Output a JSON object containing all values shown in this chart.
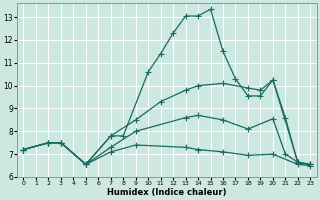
{
  "xlabel": "Humidex (Indice chaleur)",
  "xlim": [
    -0.5,
    23.5
  ],
  "ylim": [
    6,
    13.6
  ],
  "yticks": [
    6,
    7,
    8,
    9,
    10,
    11,
    12,
    13
  ],
  "xticks": [
    0,
    1,
    2,
    3,
    4,
    5,
    6,
    7,
    8,
    9,
    10,
    11,
    12,
    13,
    14,
    15,
    16,
    17,
    18,
    19,
    20,
    21,
    22,
    23
  ],
  "bg_color": "#cce8e0",
  "line_color": "#1a6a60",
  "grid_color": "#ffffff",
  "lines": [
    {
      "x": [
        0,
        2,
        3,
        5,
        7,
        8,
        10,
        11,
        12,
        13,
        14,
        15,
        16,
        17,
        18,
        19,
        20,
        21,
        22,
        23
      ],
      "y": [
        7.2,
        7.5,
        7.5,
        6.55,
        7.8,
        7.8,
        10.6,
        11.4,
        12.3,
        13.05,
        13.05,
        13.35,
        11.5,
        10.3,
        9.55,
        9.55,
        10.25,
        8.6,
        6.6,
        6.55
      ]
    },
    {
      "x": [
        0,
        2,
        3,
        5,
        7,
        9,
        11,
        13,
        14,
        16,
        18,
        19,
        20,
        22,
        23
      ],
      "y": [
        7.2,
        7.5,
        7.5,
        6.55,
        7.8,
        8.5,
        9.3,
        9.8,
        10.0,
        10.1,
        9.9,
        9.8,
        10.25,
        6.65,
        6.55
      ]
    },
    {
      "x": [
        0,
        2,
        3,
        5,
        7,
        9,
        13,
        14,
        16,
        18,
        20,
        21,
        22,
        23
      ],
      "y": [
        7.2,
        7.5,
        7.5,
        6.55,
        7.3,
        8.0,
        8.6,
        8.7,
        8.5,
        8.1,
        8.55,
        7.0,
        6.65,
        6.55
      ]
    },
    {
      "x": [
        0,
        2,
        3,
        5,
        7,
        9,
        13,
        14,
        16,
        18,
        20,
        22,
        23
      ],
      "y": [
        7.2,
        7.5,
        7.5,
        6.55,
        7.1,
        7.4,
        7.3,
        7.2,
        7.1,
        6.95,
        7.0,
        6.55,
        6.5
      ]
    }
  ]
}
